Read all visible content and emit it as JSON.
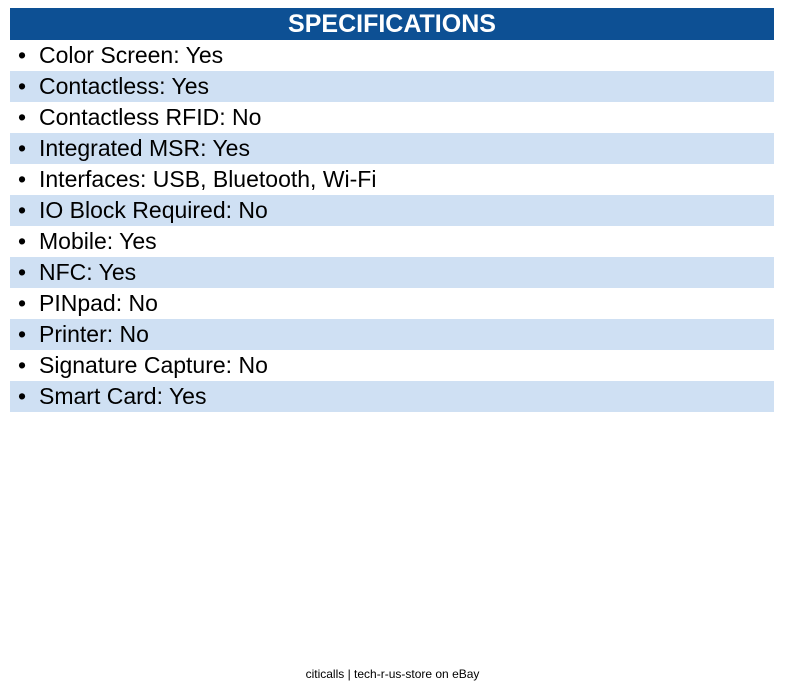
{
  "header": {
    "title": "SPECIFICATIONS"
  },
  "items": [
    "Color Screen: Yes",
    "Contactless: Yes",
    "Contactless RFID: No",
    "Integrated MSR: Yes",
    "Interfaces: USB, Bluetooth, Wi-Fi",
    "IO Block Required: No",
    "Mobile: Yes",
    "NFC: Yes",
    "PINpad: No",
    "Printer: No",
    "Signature Capture: No",
    "Smart Card: Yes"
  ],
  "footer": "citicalls | tech-r-us-store on eBay"
}
